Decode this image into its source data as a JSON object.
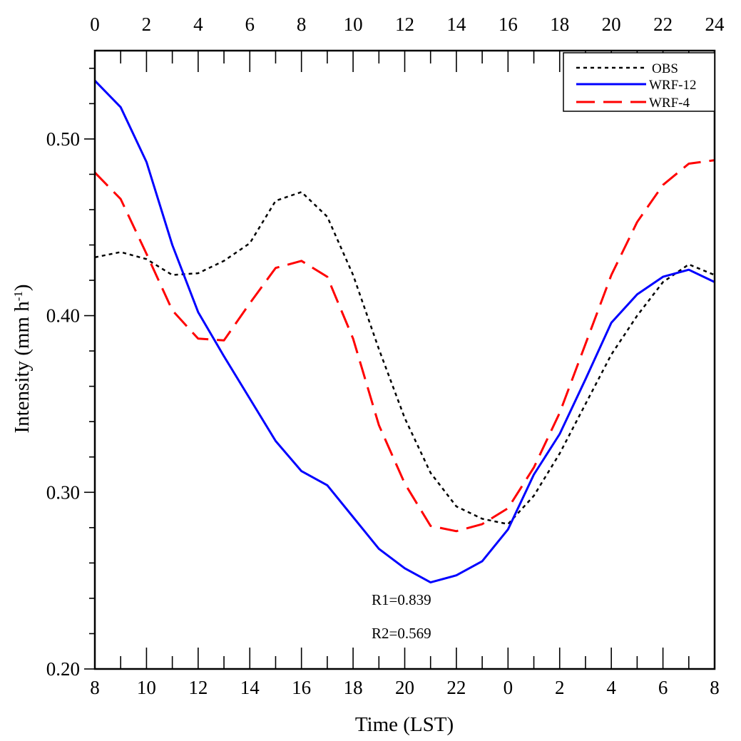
{
  "chart_data": {
    "type": "line",
    "xlabel": "Time (LST)",
    "ylabel": "Intensity (mm h",
    "ylabel_superscript": "-1",
    "ylabel_close": ")",
    "ylim": [
      0.2,
      0.55
    ],
    "yticks_major": [
      0.2,
      0.3,
      0.4,
      0.5
    ],
    "yticks_major_labels": [
      "0.20",
      "0.30",
      "0.40",
      "0.50"
    ],
    "yticks_minor_step": 0.02,
    "xlim": [
      0,
      24
    ],
    "x_bottom_tick_labels": [
      "8",
      "10",
      "12",
      "14",
      "16",
      "18",
      "20",
      "22",
      "0",
      "2",
      "4",
      "6",
      "8"
    ],
    "x_top_tick_labels": [
      "0",
      "2",
      "4",
      "6",
      "8",
      "10",
      "12",
      "14",
      "16",
      "18",
      "20",
      "22",
      "24"
    ],
    "grid": false,
    "legend_position": "top-right",
    "x": [
      0,
      1,
      2,
      3,
      4,
      5,
      6,
      7,
      8,
      9,
      10,
      11,
      12,
      13,
      14,
      15,
      16,
      17,
      18,
      19,
      20,
      21,
      22,
      23,
      24
    ],
    "series": [
      {
        "name": "OBS",
        "color": "#000000",
        "style": "dotted",
        "values": [
          0.433,
          0.436,
          0.432,
          0.423,
          0.424,
          0.431,
          0.441,
          0.465,
          0.47,
          0.456,
          0.423,
          0.381,
          0.342,
          0.311,
          0.292,
          0.285,
          0.282,
          0.298,
          0.322,
          0.35,
          0.378,
          0.4,
          0.419,
          0.429,
          0.423
        ]
      },
      {
        "name": "WRF-12",
        "color": "#0000ff",
        "style": "solid",
        "values": [
          0.533,
          0.518,
          0.487,
          0.44,
          0.402,
          0.377,
          0.353,
          0.329,
          0.312,
          0.304,
          0.286,
          0.268,
          0.257,
          0.249,
          0.253,
          0.261,
          0.279,
          0.31,
          0.333,
          0.364,
          0.396,
          0.412,
          0.422,
          0.426,
          0.419
        ]
      },
      {
        "name": "WRF-4",
        "color": "#ff0000",
        "style": "dashed",
        "values": [
          0.481,
          0.466,
          0.435,
          0.403,
          0.387,
          0.386,
          0.407,
          0.427,
          0.431,
          0.422,
          0.387,
          0.338,
          0.305,
          0.281,
          0.278,
          0.282,
          0.291,
          0.314,
          0.345,
          0.384,
          0.423,
          0.453,
          0.474,
          0.486,
          0.488
        ]
      }
    ],
    "annotations": [
      "R1=0.839",
      "R2=0.569"
    ]
  }
}
